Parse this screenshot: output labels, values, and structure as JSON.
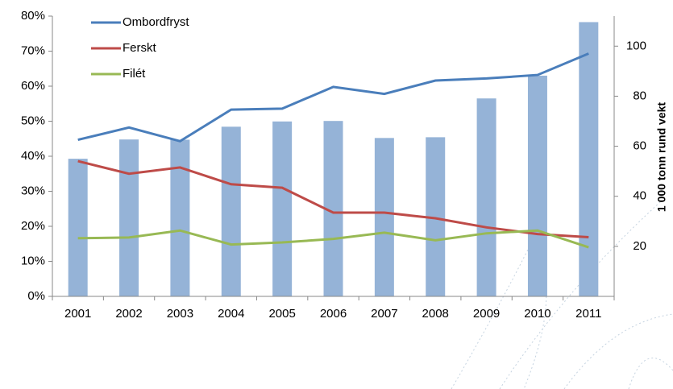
{
  "chart_data": {
    "type": "bar_line",
    "categories": [
      "2001",
      "2002",
      "2003",
      "2004",
      "2005",
      "2006",
      "2007",
      "2008",
      "2009",
      "2010",
      "2011"
    ],
    "y2_label": "1 000 tonn rund vekt",
    "bar_color": "#95b3d7",
    "bars": [
      55,
      62.7,
      62.6,
      67.8,
      69.9,
      70.1,
      63.3,
      63.6,
      79.1,
      88.2,
      109.6
    ],
    "series": [
      {
        "name": "Ombordfryst",
        "color": "#4a7ebb",
        "values": [
          44.7,
          48.2,
          44.3,
          53.3,
          53.6,
          59.8,
          57.8,
          61.6,
          62.2,
          63.2,
          69.3
        ]
      },
      {
        "name": "Ferskt",
        "color": "#be4b48",
        "values": [
          38.6,
          35.0,
          36.8,
          32.0,
          31.0,
          23.9,
          23.9,
          22.3,
          19.7,
          17.8,
          16.9
        ]
      },
      {
        "name": "Filét",
        "color": "#98b954",
        "values": [
          16.6,
          16.8,
          18.8,
          14.8,
          15.4,
          16.4,
          18.2,
          16.0,
          18.0,
          18.8,
          14.0
        ]
      }
    ],
    "ylim": [
      0,
      80
    ],
    "yticks": [
      {
        "value": 0,
        "label": "0%"
      },
      {
        "value": 10,
        "label": "10%"
      },
      {
        "value": 20,
        "label": "20%"
      },
      {
        "value": 30,
        "label": "30%"
      },
      {
        "value": 40,
        "label": "40%"
      },
      {
        "value": 50,
        "label": "50%"
      },
      {
        "value": 60,
        "label": "60%"
      },
      {
        "value": 70,
        "label": "70%"
      },
      {
        "value": 80,
        "label": "80%"
      }
    ],
    "y2lim": [
      0,
      112
    ],
    "y2ticks": [
      20,
      40,
      60,
      80,
      100
    ]
  }
}
